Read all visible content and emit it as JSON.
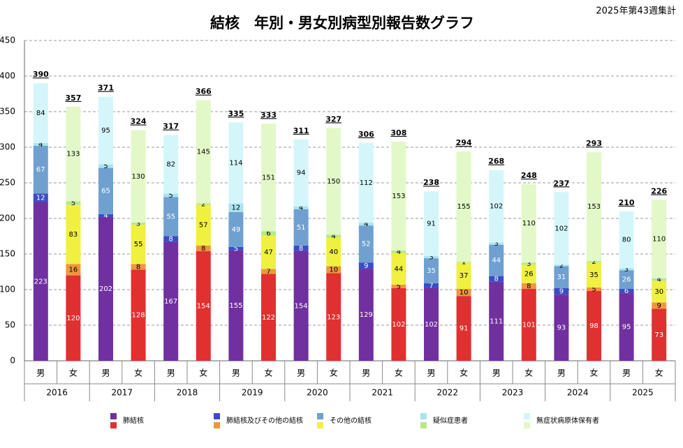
{
  "chart_data": {
    "type": "stacked-bar",
    "title": "結核　年別・男女別病型別報告数グラフ",
    "note": "2025年第43週集計",
    "categories": [
      "男",
      "女",
      "男",
      "女",
      "男",
      "女",
      "男",
      "女",
      "男",
      "女",
      "男",
      "女",
      "男",
      "女",
      "男",
      "女",
      "男",
      "女",
      "男",
      "女"
    ],
    "years": [
      "2016",
      "2017",
      "2018",
      "2019",
      "2020",
      "2021",
      "2022",
      "2023",
      "2024",
      "2025"
    ],
    "ylim": [
      0,
      450
    ],
    "yticks": [
      0,
      50,
      100,
      150,
      200,
      250,
      300,
      350,
      400,
      450
    ],
    "grid": true,
    "totals": [
      390,
      357,
      371,
      324,
      317,
      366,
      335,
      333,
      311,
      327,
      306,
      308,
      238,
      294,
      268,
      248,
      237,
      293,
      210,
      226
    ],
    "series": [
      {
        "name": "肺結核",
        "colors": [
          "#7030a0",
          "#e03030"
        ],
        "values": [
          223,
          120,
          202,
          128,
          167,
          154,
          155,
          122,
          154,
          123,
          129,
          102,
          102,
          91,
          111,
          101,
          93,
          98,
          95,
          73
        ]
      },
      {
        "name": "肺結核及びその他の結核",
        "colors": [
          "#3c4cc4",
          "#f0963c"
        ],
        "values": [
          12,
          16,
          4,
          8,
          8,
          8,
          5,
          7,
          8,
          10,
          9,
          5,
          7,
          10,
          8,
          8,
          9,
          5,
          6,
          9
        ]
      },
      {
        "name": "その他の結核",
        "colors": [
          "#6fa0d0",
          "#f0f040"
        ],
        "values": [
          67,
          83,
          65,
          55,
          55,
          57,
          49,
          47,
          51,
          40,
          52,
          44,
          35,
          37,
          44,
          26,
          31,
          35,
          26,
          30
        ]
      },
      {
        "name": "疑似症患者",
        "colors": [
          "#a8e4f0",
          "#b8e888"
        ],
        "values": [
          4,
          5,
          5,
          3,
          5,
          2,
          12,
          6,
          4,
          4,
          4,
          4,
          3,
          1,
          3,
          3,
          2,
          2,
          3,
          4
        ]
      },
      {
        "name": "無症状病原体保有者",
        "colors": [
          "#d4f6fa",
          "#e2f8c8"
        ],
        "values": [
          84,
          133,
          95,
          130,
          82,
          145,
          114,
          151,
          94,
          150,
          112,
          153,
          91,
          155,
          102,
          110,
          102,
          153,
          80,
          110
        ]
      }
    ]
  }
}
